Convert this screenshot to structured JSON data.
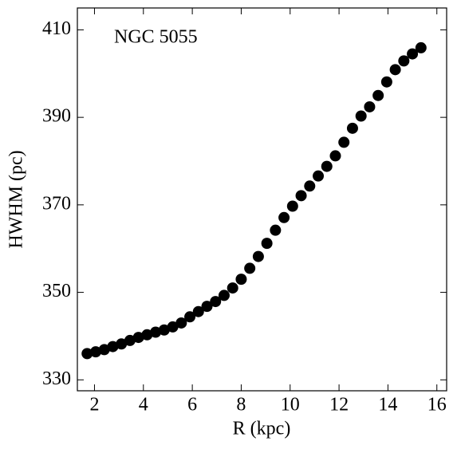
{
  "chart_data": {
    "type": "scatter",
    "annotation": "NGC 5055",
    "xlabel": "R (kpc)",
    "ylabel": "HWHM (pc)",
    "color": "#000000",
    "x": [
      1.7,
      2.05,
      2.4,
      2.75,
      3.1,
      3.45,
      3.8,
      4.15,
      4.5,
      4.85,
      5.2,
      5.55,
      5.9,
      6.25,
      6.6,
      6.95,
      7.3,
      7.65,
      8.0,
      8.35,
      8.7,
      9.05,
      9.4,
      9.75,
      10.1,
      10.45,
      10.8,
      11.15,
      11.5,
      11.85,
      12.2,
      12.55,
      12.9,
      13.25,
      13.6,
      13.95,
      14.3,
      14.65,
      15.0,
      15.35
    ],
    "values": [
      336.0,
      336.4,
      336.9,
      337.6,
      338.2,
      339.0,
      339.7,
      340.3,
      340.9,
      341.4,
      342.1,
      343.0,
      344.4,
      345.6,
      346.8,
      347.9,
      349.3,
      351.0,
      353.0,
      355.5,
      358.2,
      361.2,
      364.2,
      367.1,
      369.7,
      372.1,
      374.3,
      376.6,
      378.8,
      381.2,
      384.3,
      387.5,
      390.3,
      392.4,
      395.0,
      398.1,
      400.9,
      402.9,
      404.5,
      405.9
    ],
    "xlim": [
      1.3,
      16.4
    ],
    "xticks": [
      2,
      4,
      6,
      8,
      10,
      12,
      14,
      16
    ],
    "ylim": [
      327.5,
      415
    ],
    "yticks": [
      330,
      350,
      370,
      390,
      410
    ]
  }
}
